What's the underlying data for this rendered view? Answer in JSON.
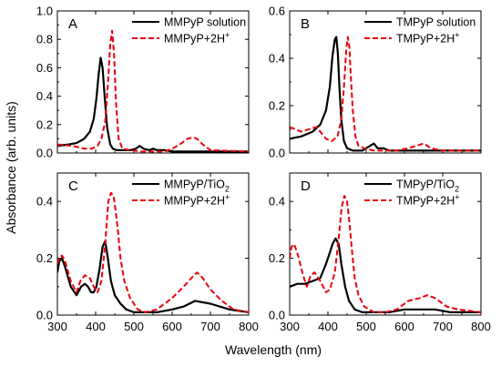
{
  "figure": {
    "ylabel": "Absorbance (arb. units)",
    "xlabel": "Wavelength (nm)"
  },
  "chart_data": [
    {
      "type": "line",
      "panel": "A",
      "xlim": [
        300,
        800
      ],
      "ylim": [
        0,
        1.0
      ],
      "xticks": [
        300,
        400,
        500,
        600,
        700,
        800
      ],
      "yticks": [
        0.0,
        0.2,
        0.4,
        0.6,
        0.8,
        1.0
      ],
      "ytick_labels": [
        "0.0",
        "0.2",
        "0.4",
        "0.6",
        "0.8",
        "1.0"
      ],
      "legend_position": "top-right",
      "series": [
        {
          "name": "MMPyP solution",
          "style": "solid",
          "color": "#000000",
          "x": [
            300,
            330,
            350,
            370,
            385,
            395,
            402,
            408,
            413,
            418,
            424,
            430,
            438,
            445,
            455,
            470,
            490,
            505,
            515,
            525,
            540,
            550,
            560,
            580,
            600,
            650,
            700,
            800
          ],
          "y": [
            0.05,
            0.06,
            0.07,
            0.1,
            0.15,
            0.24,
            0.38,
            0.56,
            0.67,
            0.6,
            0.38,
            0.18,
            0.06,
            0.03,
            0.02,
            0.02,
            0.02,
            0.03,
            0.05,
            0.03,
            0.02,
            0.03,
            0.02,
            0.02,
            0.01,
            0.01,
            0.01,
            0.01
          ]
        },
        {
          "name": "MMPyP+2H⁺",
          "style": "dashed",
          "color": "#e8000b",
          "x": [
            300,
            340,
            370,
            390,
            405,
            415,
            425,
            432,
            438,
            443,
            448,
            453,
            460,
            470,
            490,
            520,
            550,
            580,
            600,
            620,
            640,
            655,
            665,
            680,
            700,
            800
          ],
          "y": [
            0.06,
            0.05,
            0.03,
            0.03,
            0.05,
            0.1,
            0.22,
            0.48,
            0.76,
            0.86,
            0.7,
            0.36,
            0.1,
            0.03,
            0.02,
            0.01,
            0.01,
            0.01,
            0.03,
            0.06,
            0.1,
            0.11,
            0.1,
            0.06,
            0.02,
            0.01
          ]
        }
      ]
    },
    {
      "type": "line",
      "panel": "B",
      "xlim": [
        300,
        800
      ],
      "ylim": [
        0,
        0.6
      ],
      "xticks": [
        300,
        400,
        500,
        600,
        700,
        800
      ],
      "yticks": [
        0.0,
        0.2,
        0.4,
        0.6
      ],
      "ytick_labels": [
        "0.0",
        "0.2",
        "0.4",
        "0.6"
      ],
      "legend_position": "top-right",
      "series": [
        {
          "name": "TMPyP solution",
          "style": "solid",
          "color": "#000000",
          "x": [
            300,
            330,
            360,
            380,
            395,
            405,
            412,
            418,
            422,
            426,
            430,
            435,
            442,
            450,
            465,
            490,
            510,
            520,
            530,
            545,
            560,
            600,
            650,
            700,
            800
          ],
          "y": [
            0.06,
            0.07,
            0.09,
            0.12,
            0.18,
            0.28,
            0.41,
            0.48,
            0.49,
            0.42,
            0.28,
            0.14,
            0.05,
            0.02,
            0.01,
            0.01,
            0.03,
            0.04,
            0.02,
            0.02,
            0.01,
            0.01,
            0.01,
            0.01,
            0.01
          ]
        },
        {
          "name": "TMPyP+2H⁺",
          "style": "dashed",
          "color": "#e8000b",
          "x": [
            300,
            315,
            330,
            350,
            370,
            385,
            395,
            410,
            425,
            435,
            442,
            448,
            452,
            456,
            460,
            465,
            472,
            480,
            495,
            520,
            550,
            580,
            610,
            650,
            670,
            700,
            800
          ],
          "y": [
            0.11,
            0.1,
            0.09,
            0.1,
            0.11,
            0.08,
            0.06,
            0.05,
            0.07,
            0.14,
            0.28,
            0.44,
            0.49,
            0.45,
            0.32,
            0.18,
            0.07,
            0.03,
            0.02,
            0.01,
            0.01,
            0.01,
            0.02,
            0.04,
            0.02,
            0.01,
            0.01
          ]
        }
      ]
    },
    {
      "type": "line",
      "panel": "C",
      "xlim": [
        300,
        800
      ],
      "ylim": [
        0,
        0.5
      ],
      "xticks": [
        300,
        400,
        500,
        600,
        700,
        800
      ],
      "yticks": [
        0.0,
        0.2,
        0.4
      ],
      "ytick_labels": [
        "0.0",
        "0.2",
        "0.4"
      ],
      "legend_position": "top-right",
      "series": [
        {
          "name": "MMPyP/TiO2",
          "style": "solid",
          "color": "#000000",
          "x": [
            300,
            305,
            312,
            320,
            335,
            350,
            362,
            372,
            380,
            388,
            395,
            402,
            410,
            418,
            425,
            432,
            440,
            450,
            465,
            480,
            500,
            530,
            560,
            600,
            630,
            660,
            700,
            750,
            800
          ],
          "y": [
            0.15,
            0.19,
            0.2,
            0.17,
            0.1,
            0.07,
            0.1,
            0.11,
            0.1,
            0.08,
            0.08,
            0.1,
            0.16,
            0.24,
            0.26,
            0.2,
            0.12,
            0.07,
            0.04,
            0.02,
            0.01,
            0.01,
            0.01,
            0.02,
            0.03,
            0.05,
            0.04,
            0.02,
            0.01
          ]
        },
        {
          "name": "MMPyP+2H⁺",
          "style": "dashed",
          "color": "#e8000b",
          "x": [
            300,
            305,
            312,
            320,
            335,
            350,
            360,
            372,
            385,
            395,
            405,
            415,
            425,
            433,
            440,
            447,
            452,
            458,
            465,
            475,
            490,
            510,
            530,
            560,
            600,
            630,
            650,
            665,
            680,
            700,
            730,
            760,
            800
          ],
          "y": [
            0.18,
            0.2,
            0.21,
            0.19,
            0.12,
            0.08,
            0.12,
            0.14,
            0.13,
            0.1,
            0.08,
            0.12,
            0.25,
            0.4,
            0.43,
            0.42,
            0.37,
            0.3,
            0.2,
            0.12,
            0.06,
            0.02,
            0.01,
            0.02,
            0.06,
            0.1,
            0.13,
            0.15,
            0.13,
            0.09,
            0.05,
            0.02,
            0.01
          ]
        }
      ]
    },
    {
      "type": "line",
      "panel": "D",
      "xlim": [
        300,
        800
      ],
      "ylim": [
        0,
        0.5
      ],
      "xticks": [
        300,
        400,
        500,
        600,
        700,
        800
      ],
      "yticks": [
        0.0,
        0.2,
        0.4
      ],
      "ytick_labels": [
        "0.0",
        "0.2",
        "0.4"
      ],
      "legend_position": "top-right",
      "series": [
        {
          "name": "TMPyP/TiO2",
          "style": "solid",
          "color": "#000000",
          "x": [
            300,
            320,
            340,
            360,
            380,
            395,
            405,
            412,
            420,
            428,
            435,
            445,
            455,
            470,
            490,
            510,
            530,
            560,
            600,
            640,
            680,
            720,
            760,
            800
          ],
          "y": [
            0.1,
            0.11,
            0.11,
            0.12,
            0.13,
            0.18,
            0.22,
            0.25,
            0.27,
            0.25,
            0.18,
            0.1,
            0.05,
            0.02,
            0.01,
            0.01,
            0.01,
            0.01,
            0.02,
            0.02,
            0.02,
            0.01,
            0.01,
            0.01
          ]
        },
        {
          "name": "TMPyP+2H⁺",
          "style": "dashed",
          "color": "#e8000b",
          "x": [
            300,
            305,
            312,
            322,
            335,
            345,
            355,
            365,
            380,
            395,
            405,
            418,
            428,
            436,
            443,
            450,
            456,
            462,
            470,
            480,
            495,
            520,
            550,
            580,
            610,
            640,
            660,
            680,
            710,
            740,
            800
          ],
          "y": [
            0.2,
            0.24,
            0.25,
            0.21,
            0.14,
            0.1,
            0.14,
            0.15,
            0.12,
            0.08,
            0.09,
            0.15,
            0.27,
            0.38,
            0.42,
            0.4,
            0.33,
            0.24,
            0.13,
            0.07,
            0.03,
            0.01,
            0.01,
            0.02,
            0.05,
            0.06,
            0.07,
            0.06,
            0.03,
            0.02,
            0.01
          ]
        }
      ]
    }
  ]
}
